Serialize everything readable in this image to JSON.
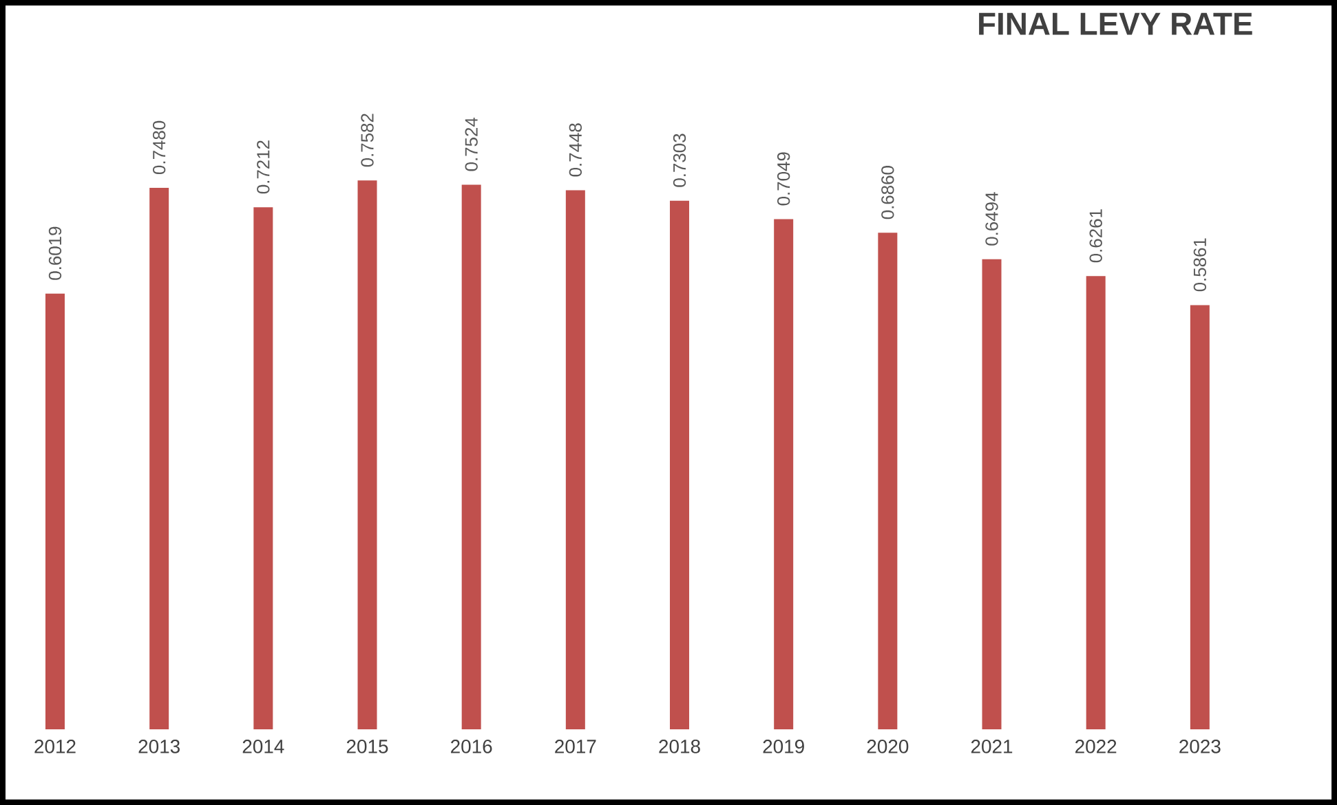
{
  "chart_data": {
    "type": "bar",
    "title": "FINAL LEVY RATE",
    "categories": [
      "2012",
      "2013",
      "2014",
      "2015",
      "2016",
      "2017",
      "2018",
      "2019",
      "2020",
      "2021",
      "2022",
      "2023"
    ],
    "values": [
      0.6019,
      0.748,
      0.7212,
      0.7582,
      0.7524,
      0.7448,
      0.7303,
      0.7049,
      0.686,
      0.6494,
      0.6261,
      0.5861
    ],
    "value_labels": [
      "0.6019",
      "0.7480",
      "0.7212",
      "0.7582",
      "0.7524",
      "0.7448",
      "0.7303",
      "0.7049",
      "0.6860",
      "0.6494",
      "0.6261",
      "0.5861"
    ],
    "color": "#c0504d",
    "ylim": [
      0,
      1
    ]
  }
}
